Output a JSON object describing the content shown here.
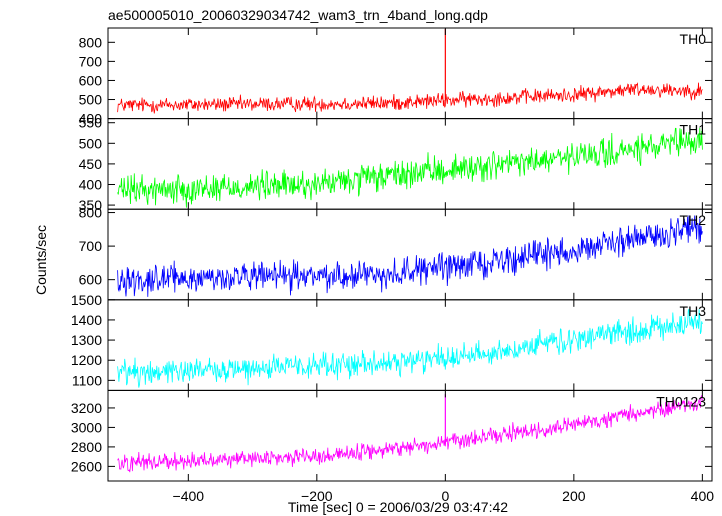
{
  "chart_data": {
    "type": "line",
    "title": "ae500005010_20060329034742_wam3_trn_4band_long.qdp",
    "xlabel": "Time [sec] 0 = 2006/03/29 03:47:42",
    "ylabel": "Counts/sec",
    "xlim": [
      -525,
      415
    ],
    "x_ticks": [
      -400,
      -200,
      0,
      200,
      400
    ],
    "x_tick_labels": [
      "−400",
      "−200",
      "0",
      "200",
      "400"
    ],
    "x_range": [
      -510,
      400
    ],
    "grid": false,
    "panels": [
      {
        "name": "TH0",
        "color": "#ff0000",
        "ylim": [
          400,
          875
        ],
        "yticks": [
          400,
          500,
          600,
          700,
          800
        ],
        "trend": [
          [
            -510,
            470
          ],
          [
            -100,
            480
          ],
          [
            0,
            495
          ],
          [
            200,
            525
          ],
          [
            300,
            555
          ],
          [
            400,
            545
          ]
        ],
        "noise": 28,
        "spike": {
          "x": 0,
          "y": 870
        }
      },
      {
        "name": "TH1",
        "color": "#00ff00",
        "ylim": [
          340,
          560
        ],
        "yticks": [
          350,
          400,
          450,
          500,
          550
        ],
        "trend": [
          [
            -510,
            385
          ],
          [
            -200,
            400
          ],
          [
            0,
            435
          ],
          [
            200,
            465
          ],
          [
            400,
            505
          ]
        ],
        "noise": 25
      },
      {
        "name": "TH2",
        "color": "#0000ff",
        "ylim": [
          540,
          810
        ],
        "yticks": [
          600,
          700,
          800
        ],
        "trend": [
          [
            -510,
            600
          ],
          [
            -100,
            615
          ],
          [
            100,
            660
          ],
          [
            300,
            720
          ],
          [
            400,
            760
          ]
        ],
        "noise": 30
      },
      {
        "name": "TH3",
        "color": "#00ffff",
        "ylim": [
          1050,
          1500
        ],
        "yticks": [
          1100,
          1200,
          1300,
          1400,
          1500
        ],
        "trend": [
          [
            -510,
            1140
          ],
          [
            -100,
            1180
          ],
          [
            100,
            1250
          ],
          [
            300,
            1350
          ],
          [
            400,
            1390
          ]
        ],
        "noise": 45
      },
      {
        "name": "TH0123",
        "color": "#ff00ff",
        "ylim": [
          2450,
          3380
        ],
        "yticks": [
          2600,
          2800,
          3000,
          3200
        ],
        "trend": [
          [
            -510,
            2640
          ],
          [
            -200,
            2700
          ],
          [
            0,
            2840
          ],
          [
            200,
            3020
          ],
          [
            400,
            3270
          ]
        ],
        "noise": 60,
        "spike": {
          "x": 0,
          "y": 3340
        }
      }
    ]
  }
}
